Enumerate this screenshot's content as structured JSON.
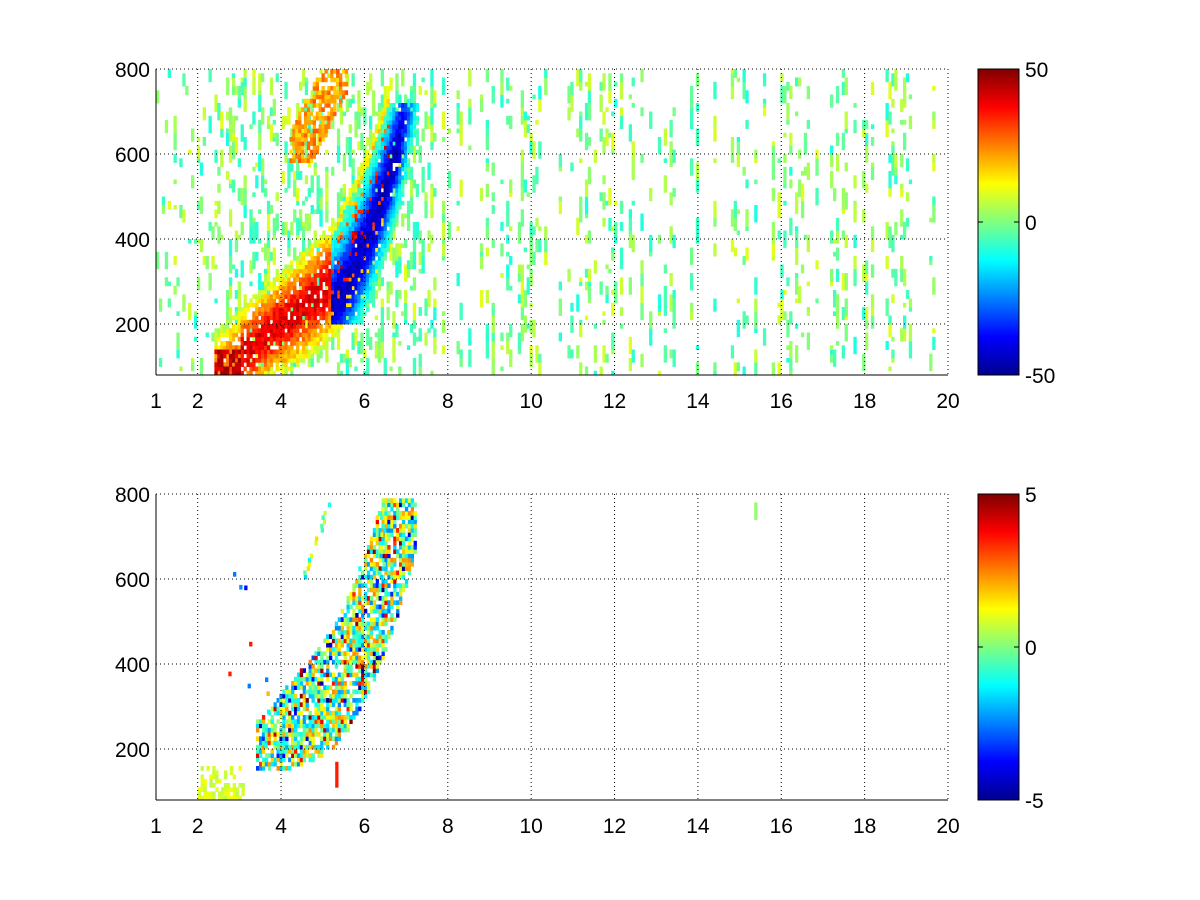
{
  "chart_data": [
    {
      "type": "heatmap",
      "title": "",
      "xlabel": "",
      "ylabel": "",
      "xlim": [
        1,
        20
      ],
      "ylim": [
        80,
        800
      ],
      "x_ticks": [
        "1",
        "2",
        "4",
        "6",
        "8",
        "10",
        "12",
        "14",
        "16",
        "18",
        "20"
      ],
      "y_ticks": [
        "200",
        "400",
        "600",
        "800"
      ],
      "grid": true,
      "colormap": "jet",
      "colorbar": {
        "min": -50,
        "max": 50,
        "ticks": [
          "50",
          "0",
          "-50"
        ]
      },
      "features": [
        {
          "description": "positive ridge",
          "x_range": [
            2.5,
            6.5
          ],
          "y_range": [
            100,
            800
          ],
          "value_range": [
            20,
            50
          ]
        },
        {
          "description": "negative ridge",
          "x_range": [
            5.5,
            7.5
          ],
          "y_range": [
            250,
            700
          ],
          "value_range": [
            -50,
            -20
          ]
        },
        {
          "description": "scattered weak noise",
          "x_range": [
            7.5,
            20
          ],
          "y_range": [
            80,
            800
          ],
          "value_range": [
            -10,
            10
          ]
        }
      ]
    },
    {
      "type": "heatmap",
      "title": "",
      "xlabel": "",
      "ylabel": "",
      "xlim": [
        1,
        20
      ],
      "ylim": [
        80,
        800
      ],
      "x_ticks": [
        "1",
        "2",
        "4",
        "6",
        "8",
        "10",
        "12",
        "14",
        "16",
        "18",
        "20"
      ],
      "y_ticks": [
        "200",
        "400",
        "600",
        "800"
      ],
      "grid": true,
      "colormap": "jet",
      "colorbar": {
        "min": -5,
        "max": 5,
        "ticks": [
          "5",
          "0",
          "-5"
        ]
      },
      "features": [
        {
          "description": "noisy band around ridge",
          "x_range": [
            3.5,
            7.2
          ],
          "y_range": [
            170,
            780
          ],
          "value_range": [
            -5,
            5
          ]
        },
        {
          "description": "isolated patch",
          "x": 15.4,
          "y_range": [
            740,
            780
          ],
          "value_range": [
            -1,
            1
          ]
        }
      ]
    }
  ]
}
